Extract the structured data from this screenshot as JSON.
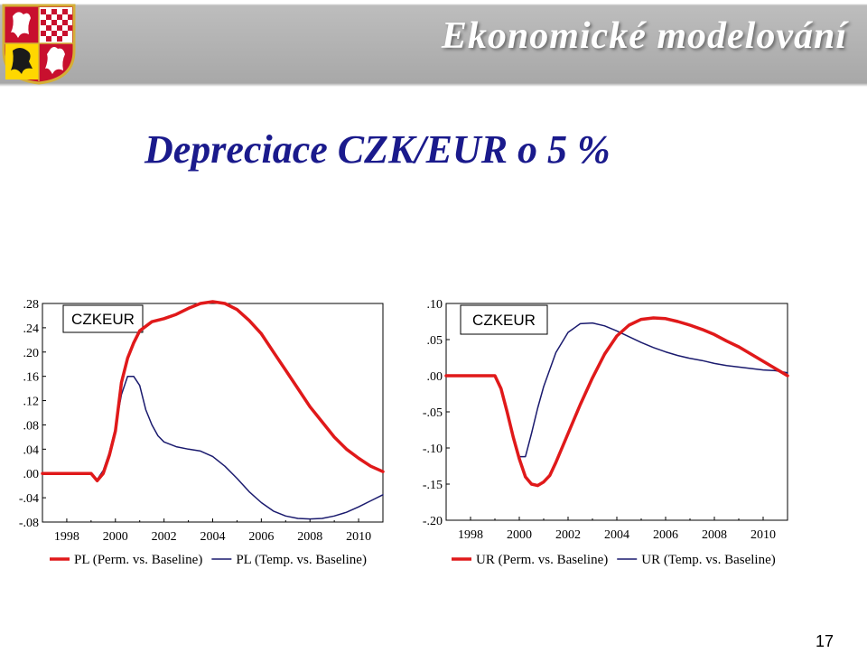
{
  "header": {
    "title": "Ekonomické modelování",
    "emblem_icon": "czech-coat-of-arms-icon"
  },
  "slide": {
    "title": "Depreciace CZK/EUR o 5 %",
    "page_number": "17"
  },
  "colors": {
    "perm": "#e0191a",
    "temp": "#1a1a6e",
    "title": "#1a1a8c"
  },
  "chart_data": [
    {
      "type": "line",
      "title": "CZKEUR",
      "ylim": [
        -0.08,
        0.28
      ],
      "yticks": [
        ".28",
        ".24",
        ".20",
        ".16",
        ".12",
        ".08",
        ".04",
        ".00",
        "-.04",
        "-.08"
      ],
      "xlim": [
        1997.0,
        2011.0
      ],
      "xticks": [
        "1998",
        "2000",
        "2002",
        "2004",
        "2006",
        "2008",
        "2010"
      ],
      "legend_position": "bottom",
      "series": [
        {
          "name": "PL (Perm. vs. Baseline)",
          "x": [
            1997.0,
            1999.0,
            1999.25,
            1999.5,
            1999.75,
            2000.0,
            2000.25,
            2000.5,
            2000.75,
            2001.0,
            2001.5,
            2002.0,
            2002.5,
            2003.0,
            2003.5,
            2004.0,
            2004.5,
            2005.0,
            2005.5,
            2006.0,
            2006.5,
            2007.0,
            2007.5,
            2008.0,
            2008.5,
            2009.0,
            2009.5,
            2010.0,
            2010.5,
            2011.0
          ],
          "values": [
            0.0,
            0.0,
            -0.012,
            0.0,
            0.03,
            0.07,
            0.15,
            0.19,
            0.215,
            0.235,
            0.25,
            0.255,
            0.262,
            0.272,
            0.28,
            0.283,
            0.28,
            0.27,
            0.252,
            0.23,
            0.2,
            0.17,
            0.14,
            0.11,
            0.085,
            0.06,
            0.04,
            0.025,
            0.012,
            0.003
          ]
        },
        {
          "name": "PL (Temp. vs. Baseline)",
          "x": [
            1997.0,
            1999.0,
            1999.25,
            1999.5,
            1999.75,
            2000.0,
            2000.25,
            2000.5,
            2000.75,
            2001.0,
            2001.25,
            2001.5,
            2001.75,
            2002.0,
            2002.5,
            2003.0,
            2003.5,
            2004.0,
            2004.5,
            2005.0,
            2005.5,
            2006.0,
            2006.5,
            2007.0,
            2007.5,
            2008.0,
            2008.5,
            2009.0,
            2009.5,
            2010.0,
            2010.5,
            2011.0
          ],
          "values": [
            0.0,
            0.0,
            -0.01,
            0.005,
            0.035,
            0.075,
            0.13,
            0.16,
            0.16,
            0.145,
            0.105,
            0.08,
            0.062,
            0.052,
            0.044,
            0.04,
            0.037,
            0.028,
            0.012,
            -0.008,
            -0.03,
            -0.048,
            -0.062,
            -0.07,
            -0.074,
            -0.075,
            -0.074,
            -0.07,
            -0.064,
            -0.055,
            -0.045,
            -0.035
          ]
        }
      ]
    },
    {
      "type": "line",
      "title": "CZKEUR",
      "ylim": [
        -0.2,
        0.1
      ],
      "yticks": [
        ".10",
        ".05",
        ".00",
        "-.05",
        "-.10",
        "-.15",
        "-.20"
      ],
      "xlim": [
        1997.0,
        2011.0
      ],
      "xticks": [
        "1998",
        "2000",
        "2002",
        "2004",
        "2006",
        "2008",
        "2010"
      ],
      "legend_position": "bottom",
      "series": [
        {
          "name": "UR (Perm. vs. Baseline)",
          "x": [
            1997.0,
            1999.0,
            1999.25,
            1999.5,
            1999.75,
            2000.0,
            2000.25,
            2000.5,
            2000.75,
            2001.0,
            2001.25,
            2001.5,
            2002.0,
            2002.5,
            2003.0,
            2003.5,
            2004.0,
            2004.5,
            2005.0,
            2005.5,
            2006.0,
            2006.5,
            2007.0,
            2007.5,
            2008.0,
            2008.5,
            2009.0,
            2009.5,
            2010.0,
            2010.5,
            2011.0
          ],
          "values": [
            0.0,
            0.0,
            -0.018,
            -0.05,
            -0.085,
            -0.115,
            -0.14,
            -0.15,
            -0.152,
            -0.147,
            -0.138,
            -0.12,
            -0.08,
            -0.04,
            -0.003,
            0.03,
            0.055,
            0.07,
            0.078,
            0.08,
            0.079,
            0.075,
            0.07,
            0.064,
            0.057,
            0.048,
            0.04,
            0.03,
            0.02,
            0.01,
            0.0
          ]
        },
        {
          "name": "UR (Temp. vs. Baseline)",
          "x": [
            1997.0,
            1999.0,
            1999.25,
            1999.5,
            1999.75,
            2000.0,
            2000.25,
            2000.5,
            2000.75,
            2001.0,
            2001.5,
            2002.0,
            2002.5,
            2003.0,
            2003.5,
            2004.0,
            2004.5,
            2005.0,
            2005.5,
            2006.0,
            2006.5,
            2007.0,
            2007.5,
            2008.0,
            2008.5,
            2009.0,
            2009.5,
            2010.0,
            2010.5,
            2011.0
          ],
          "values": [
            0.0,
            0.0,
            -0.017,
            -0.048,
            -0.082,
            -0.112,
            -0.112,
            -0.08,
            -0.045,
            -0.015,
            0.032,
            0.06,
            0.072,
            0.073,
            0.069,
            0.062,
            0.054,
            0.046,
            0.039,
            0.033,
            0.028,
            0.024,
            0.021,
            0.017,
            0.014,
            0.012,
            0.01,
            0.008,
            0.007,
            0.004
          ]
        }
      ]
    }
  ]
}
